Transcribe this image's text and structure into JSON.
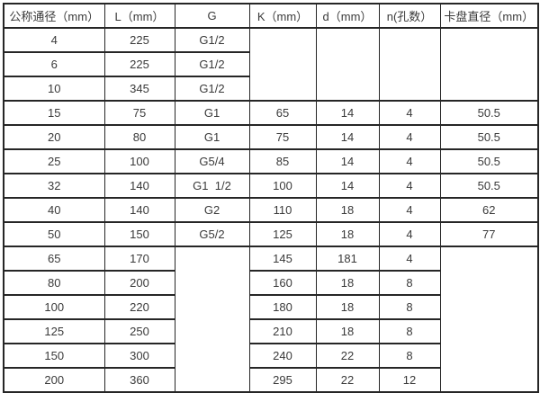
{
  "table": {
    "columns": [
      "公称通径（mm）",
      "L（mm）",
      "G",
      "K（mm）",
      "d（mm）",
      "n(孔数）",
      "卡盘直径（mm）"
    ],
    "rows": [
      [
        {
          "v": "4"
        },
        {
          "v": "225"
        },
        {
          "v": "G1/2"
        },
        {
          "v": "",
          "rs": 3
        },
        {
          "v": "",
          "rs": 3
        },
        {
          "v": "",
          "rs": 3
        },
        {
          "v": "",
          "rs": 3
        }
      ],
      [
        {
          "v": "6"
        },
        {
          "v": "225"
        },
        {
          "v": "G1/2"
        }
      ],
      [
        {
          "v": "10"
        },
        {
          "v": "345"
        },
        {
          "v": "G1/2"
        }
      ],
      [
        {
          "v": "15"
        },
        {
          "v": "75"
        },
        {
          "v": "G1"
        },
        {
          "v": "65"
        },
        {
          "v": "14"
        },
        {
          "v": "4"
        },
        {
          "v": "50.5"
        }
      ],
      [
        {
          "v": "20"
        },
        {
          "v": "80"
        },
        {
          "v": "G1"
        },
        {
          "v": "75"
        },
        {
          "v": "14"
        },
        {
          "v": "4"
        },
        {
          "v": "50.5"
        }
      ],
      [
        {
          "v": "25"
        },
        {
          "v": "100"
        },
        {
          "v": "G5/4"
        },
        {
          "v": "85"
        },
        {
          "v": "14"
        },
        {
          "v": "4"
        },
        {
          "v": "50.5"
        }
      ],
      [
        {
          "v": "32"
        },
        {
          "v": "140"
        },
        {
          "v": "G1  1/2"
        },
        {
          "v": "100"
        },
        {
          "v": "14"
        },
        {
          "v": "4"
        },
        {
          "v": "50.5"
        }
      ],
      [
        {
          "v": "40"
        },
        {
          "v": "140"
        },
        {
          "v": "G2"
        },
        {
          "v": "110"
        },
        {
          "v": "18"
        },
        {
          "v": "4"
        },
        {
          "v": "62"
        }
      ],
      [
        {
          "v": "50"
        },
        {
          "v": "150"
        },
        {
          "v": "G5/2"
        },
        {
          "v": "125"
        },
        {
          "v": "18"
        },
        {
          "v": "4"
        },
        {
          "v": "77"
        }
      ],
      [
        {
          "v": "65"
        },
        {
          "v": "170"
        },
        {
          "v": "",
          "rs": 6
        },
        {
          "v": "145"
        },
        {
          "v": "181"
        },
        {
          "v": "4"
        },
        {
          "v": "",
          "rs": 6
        }
      ],
      [
        {
          "v": "80"
        },
        {
          "v": "200"
        },
        {
          "v": "160"
        },
        {
          "v": "18"
        },
        {
          "v": "8"
        }
      ],
      [
        {
          "v": "100"
        },
        {
          "v": "220"
        },
        {
          "v": "180"
        },
        {
          "v": "18"
        },
        {
          "v": "8"
        }
      ],
      [
        {
          "v": "125"
        },
        {
          "v": "250"
        },
        {
          "v": "210"
        },
        {
          "v": "18"
        },
        {
          "v": "8"
        }
      ],
      [
        {
          "v": "150"
        },
        {
          "v": "300"
        },
        {
          "v": "240"
        },
        {
          "v": "22"
        },
        {
          "v": "8"
        }
      ],
      [
        {
          "v": "200"
        },
        {
          "v": "360"
        },
        {
          "v": "295"
        },
        {
          "v": "22"
        },
        {
          "v": "12"
        }
      ]
    ],
    "colors": {
      "border": "#262626",
      "text": "#3a3a3a",
      "background": "#ffffff"
    }
  }
}
